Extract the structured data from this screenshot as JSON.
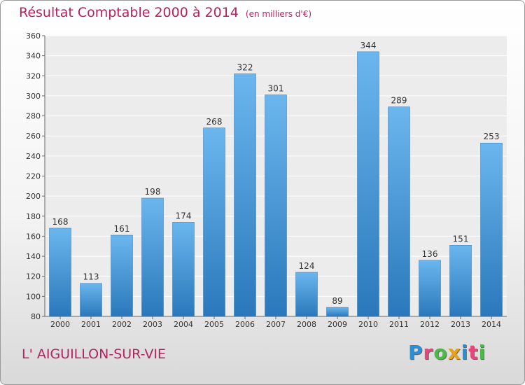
{
  "chart_data": {
    "type": "bar",
    "title": "Résultat Comptable 2000 à 2014",
    "subtitle": "(en milliers d'€)",
    "categories": [
      "2000",
      "2001",
      "2002",
      "2003",
      "2004",
      "2005",
      "2006",
      "2007",
      "2008",
      "2009",
      "2010",
      "2011",
      "2012",
      "2013",
      "2014"
    ],
    "values": [
      168,
      113,
      161,
      198,
      174,
      268,
      322,
      301,
      124,
      89,
      344,
      289,
      136,
      151,
      253
    ],
    "ylim": [
      80,
      360
    ],
    "yticks": [
      80,
      100,
      120,
      140,
      160,
      180,
      200,
      220,
      240,
      260,
      280,
      300,
      320,
      340,
      360
    ],
    "grid": true,
    "data_labels": true,
    "bar_color": "#3d95d9",
    "bar_color_top": "#6bb6ee"
  },
  "footer": {
    "town": "L' AIGUILLON-SUR-VIE",
    "brand": "Proxiti"
  },
  "colors": {
    "title": "#b4235f",
    "brand_letters": [
      "#2a8fd6",
      "#e2487a",
      "#4bb848",
      "#e6a21a",
      "#2a8fd6",
      "#e2487a",
      "#4bb848"
    ]
  }
}
